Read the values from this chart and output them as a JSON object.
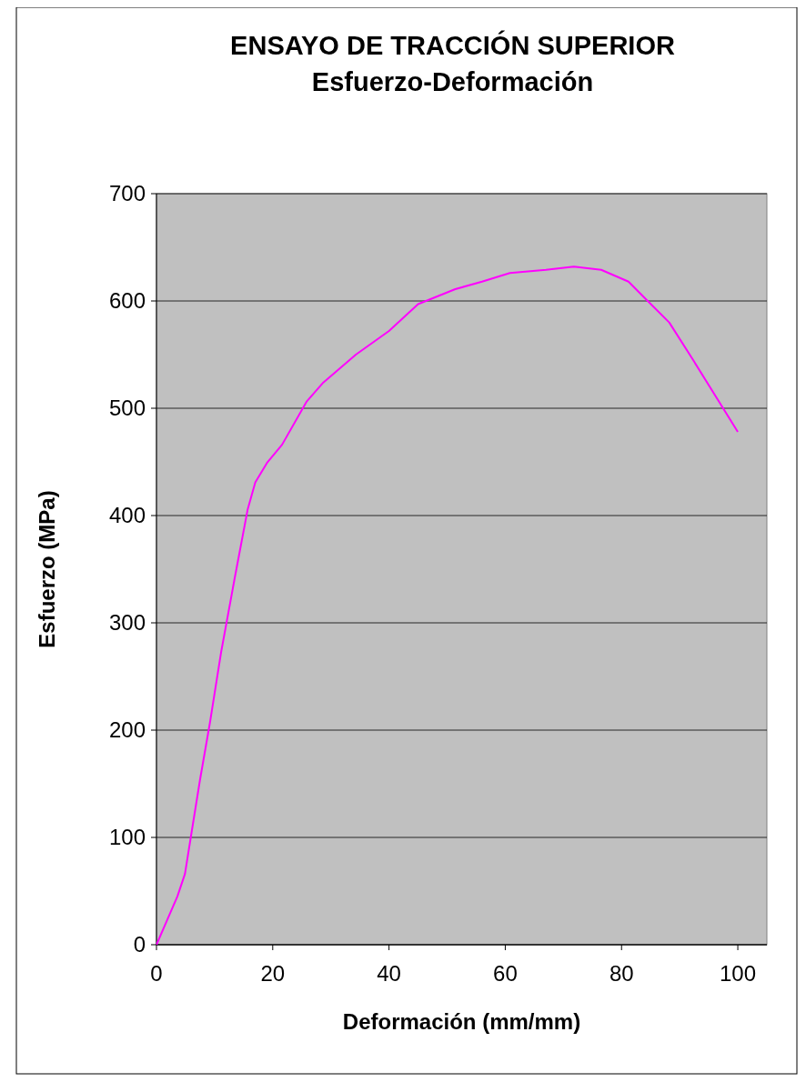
{
  "chart_data": {
    "type": "line",
    "title": "ENSAYO DE TRACCIÓN SUPERIOR",
    "subtitle": "Esfuerzo-Deformación",
    "xlabel": "Deformación (mm/mm)",
    "ylabel": "Esfuerzo (MPa)",
    "x": [
      0,
      3.6,
      4.9,
      5.9,
      7.5,
      9.2,
      11.1,
      13.4,
      15.7,
      17,
      19,
      21.6,
      25.8,
      28.7,
      34.3,
      40,
      45,
      51.4,
      56,
      60.8,
      67,
      71.8,
      76.5,
      81.2,
      84.3,
      88.2,
      92.2,
      100
    ],
    "series": [
      {
        "color": "#ff00ff",
        "values": [
          0,
          45,
          66,
          100,
          154,
          207,
          272,
          340,
          406,
          431,
          449,
          466,
          506,
          524,
          550,
          572,
          597,
          611,
          618,
          626,
          629,
          632,
          629,
          618,
          601,
          580,
          546,
          478
        ]
      }
    ],
    "xlim": [
      0,
      105
    ],
    "xticks": [
      0,
      20,
      40,
      60,
      80,
      100
    ],
    "ylim": [
      0,
      700
    ],
    "yticks": [
      0,
      100,
      200,
      300,
      400,
      500,
      600,
      700
    ],
    "grid": "y",
    "marker": "none",
    "line_style": "solid"
  }
}
